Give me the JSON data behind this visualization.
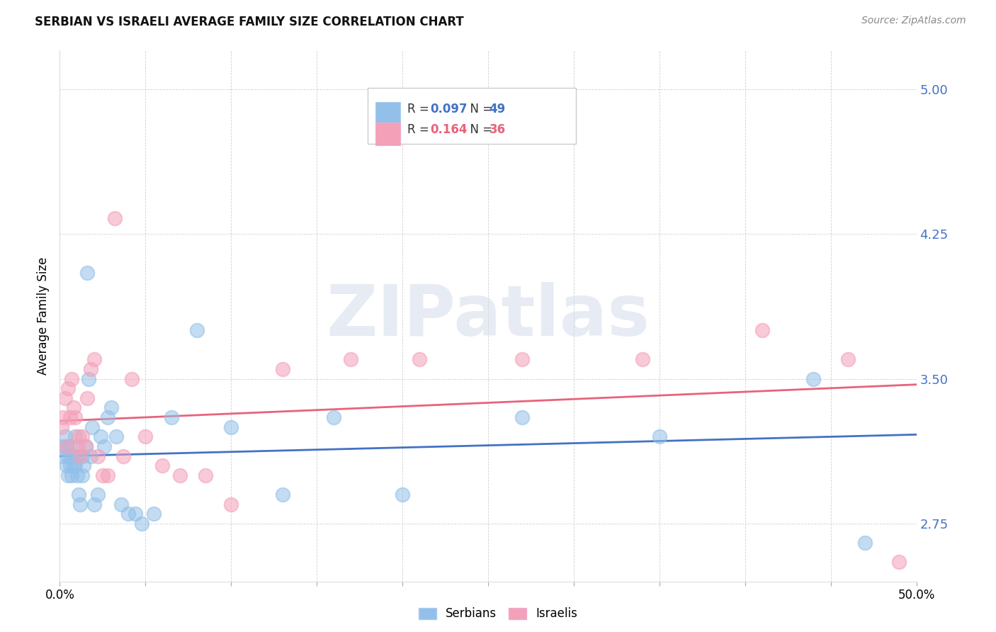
{
  "title": "SERBIAN VS ISRAELI AVERAGE FAMILY SIZE CORRELATION CHART",
  "source": "Source: ZipAtlas.com",
  "ylabel": "Average Family Size",
  "ytick_labels": [
    "2.75",
    "3.50",
    "4.25",
    "5.00"
  ],
  "ytick_values": [
    2.75,
    3.5,
    4.25,
    5.0
  ],
  "xlim": [
    0.0,
    0.5
  ],
  "ylim": [
    2.45,
    5.2
  ],
  "watermark": "ZIPatlas",
  "legend_R_serbian": "R = 0.097",
  "legend_N_serbian": "N = 49",
  "legend_R_israeli": "R =  0.164",
  "legend_N_israeli": "N = 36",
  "serbian_color": "#92C0E8",
  "israeli_color": "#F4A0B8",
  "serbian_line_color": "#4472C4",
  "israeli_line_color": "#E8637A",
  "serbian_R": 0.097,
  "serbian_N": 49,
  "israeli_R": 0.164,
  "israeli_N": 36,
  "serbians_x": [
    0.001,
    0.002,
    0.003,
    0.004,
    0.004,
    0.005,
    0.005,
    0.006,
    0.006,
    0.007,
    0.007,
    0.008,
    0.008,
    0.009,
    0.009,
    0.01,
    0.01,
    0.011,
    0.012,
    0.013,
    0.013,
    0.014,
    0.015,
    0.016,
    0.017,
    0.018,
    0.019,
    0.02,
    0.022,
    0.024,
    0.026,
    0.028,
    0.03,
    0.033,
    0.036,
    0.04,
    0.044,
    0.048,
    0.055,
    0.065,
    0.08,
    0.1,
    0.13,
    0.16,
    0.2,
    0.27,
    0.35,
    0.44,
    0.47
  ],
  "serbians_y": [
    3.15,
    3.1,
    3.2,
    3.05,
    3.15,
    3.0,
    3.1,
    3.05,
    3.15,
    3.0,
    3.1,
    3.05,
    3.1,
    3.2,
    3.05,
    3.1,
    3.0,
    2.9,
    2.85,
    3.0,
    3.1,
    3.05,
    3.15,
    4.05,
    3.5,
    3.1,
    3.25,
    2.85,
    2.9,
    3.2,
    3.15,
    3.3,
    3.35,
    3.2,
    2.85,
    2.8,
    2.8,
    2.75,
    2.8,
    3.3,
    3.75,
    3.25,
    2.9,
    3.3,
    2.9,
    3.3,
    3.2,
    3.5,
    2.65
  ],
  "israelis_x": [
    0.001,
    0.002,
    0.003,
    0.004,
    0.005,
    0.006,
    0.007,
    0.008,
    0.009,
    0.01,
    0.011,
    0.012,
    0.013,
    0.015,
    0.016,
    0.018,
    0.02,
    0.022,
    0.025,
    0.028,
    0.032,
    0.037,
    0.042,
    0.05,
    0.06,
    0.07,
    0.085,
    0.1,
    0.13,
    0.17,
    0.21,
    0.27,
    0.34,
    0.41,
    0.46,
    0.49
  ],
  "israelis_y": [
    3.25,
    3.3,
    3.4,
    3.15,
    3.45,
    3.3,
    3.5,
    3.35,
    3.3,
    3.15,
    3.2,
    3.1,
    3.2,
    3.15,
    3.4,
    3.55,
    3.6,
    3.1,
    3.0,
    3.0,
    4.33,
    3.1,
    3.5,
    3.2,
    3.05,
    3.0,
    3.0,
    2.85,
    3.55,
    3.6,
    3.6,
    3.6,
    3.6,
    3.75,
    3.6,
    2.55
  ]
}
